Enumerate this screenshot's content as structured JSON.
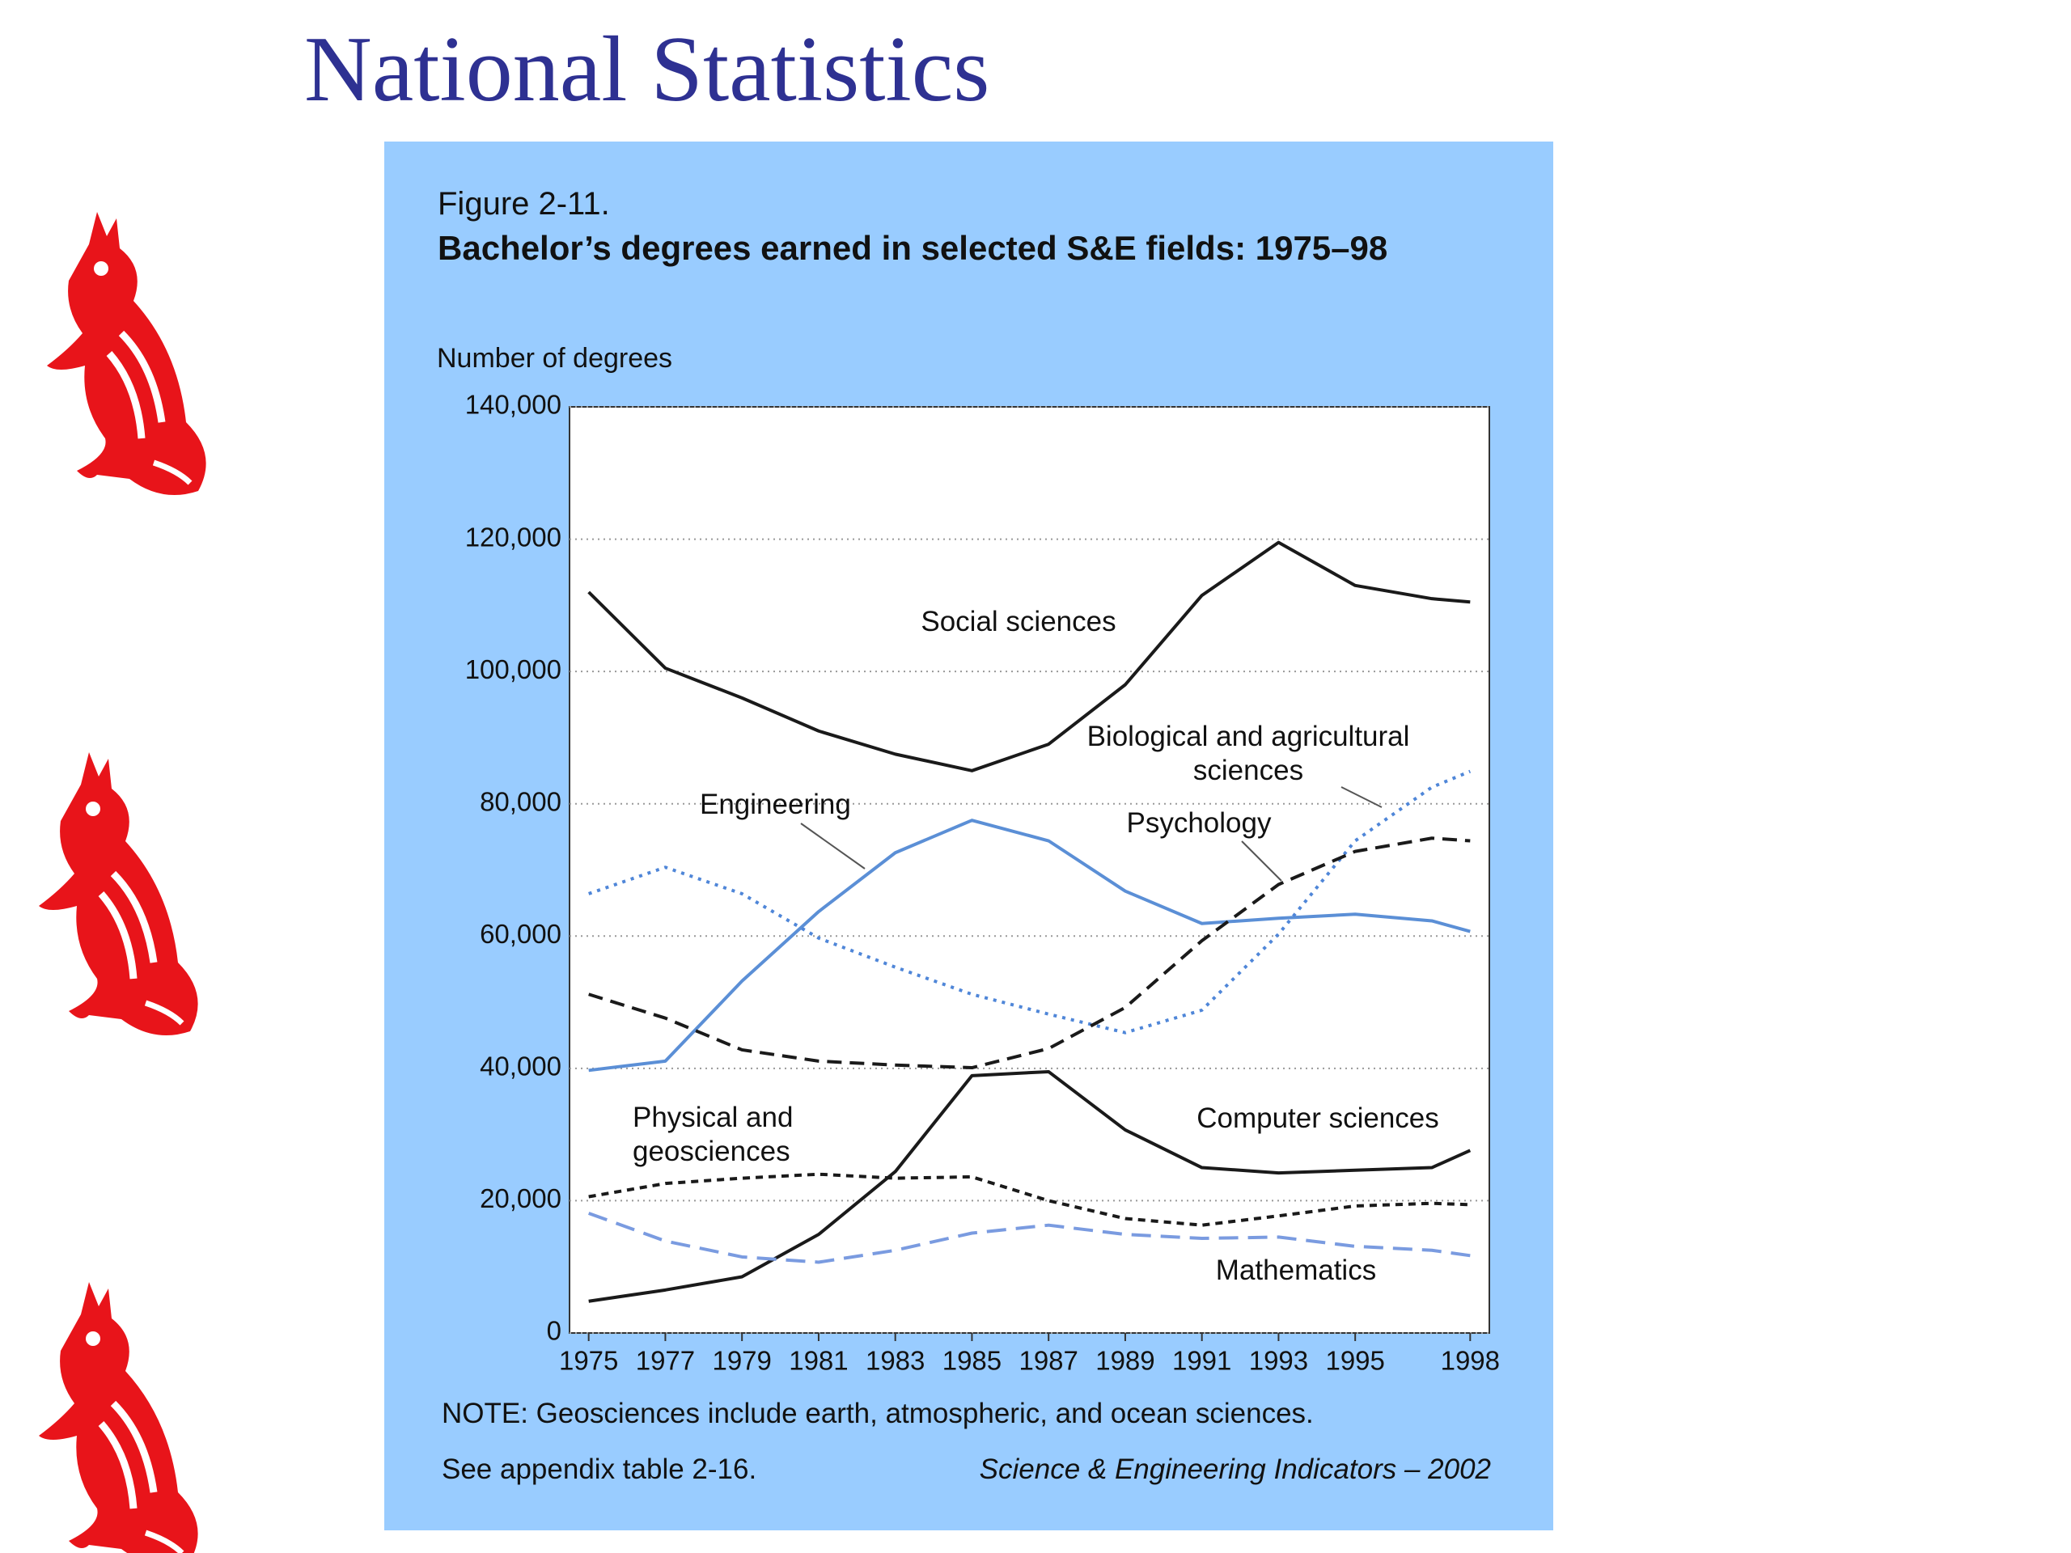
{
  "slide_title": "National Statistics",
  "chart_data": {
    "type": "line",
    "figure_label": "Figure 2-11.",
    "title": "Bachelor’s degrees earned in selected S&E fields: 1975–98",
    "y_label": "Number of degrees",
    "note": "NOTE: Geosciences include earth, atmospheric, and ocean sciences.",
    "source_left": "See appendix table 2-16.",
    "source_right": "Science & Engineering Indicators – 2002",
    "x": [
      1975,
      1977,
      1979,
      1981,
      1983,
      1985,
      1987,
      1989,
      1991,
      1993,
      1995,
      1997,
      1998
    ],
    "xlim": [
      1974.5,
      1998.5
    ],
    "xticks": [
      1975,
      1977,
      1979,
      1981,
      1983,
      1985,
      1987,
      1989,
      1991,
      1993,
      1995,
      1998
    ],
    "ylim": [
      0,
      140000
    ],
    "yticks": [
      0,
      {
        "value": 20000,
        "label": "20,000"
      },
      {
        "value": 40000,
        "label": "40,000"
      },
      {
        "value": 60000,
        "label": "60,000"
      },
      {
        "value": 80000,
        "label": "80,000"
      },
      {
        "value": 100000,
        "label": "100,000"
      },
      {
        "value": 120000,
        "label": "120,000"
      },
      {
        "value": 140000,
        "label": "140,000"
      }
    ],
    "grid": true,
    "series": [
      {
        "name": "Social sciences",
        "color": "#1a1a1a",
        "dash": "solid",
        "values": [
          112000,
          100500,
          96000,
          91000,
          87500,
          85000,
          89000,
          98000,
          111500,
          119500,
          113000,
          111000,
          110500
        ]
      },
      {
        "name": "Engineering",
        "color": "#5b8fd6",
        "dash": "solid",
        "values": [
          39700,
          41100,
          53200,
          63700,
          72600,
          77500,
          74400,
          66800,
          61900,
          62700,
          63300,
          62300,
          60700
        ]
      },
      {
        "name": "Biological and agricultural sciences",
        "color": "#4f86d8",
        "dash": "dotted",
        "values": [
          66400,
          70400,
          66400,
          59700,
          55300,
          51200,
          48200,
          45400,
          48800,
          60300,
          74400,
          82500,
          84900
        ]
      },
      {
        "name": "Psychology",
        "color": "#1a1a1a",
        "dash": "dashed",
        "values": [
          51200,
          47600,
          42800,
          41100,
          40500,
          40100,
          43000,
          49200,
          59300,
          67800,
          72800,
          74800,
          74400
        ]
      },
      {
        "name": "Computer sciences",
        "color": "#1a1a1a",
        "dash": "solid",
        "values": [
          4800,
          6500,
          8500,
          14900,
          24400,
          38900,
          39500,
          30700,
          25000,
          24200,
          24600,
          25000,
          27600
        ]
      },
      {
        "name": "Physical and geosciences",
        "color": "#1a1a1a",
        "dash": "short-dashed",
        "values": [
          20600,
          22600,
          23400,
          24000,
          23400,
          23600,
          20000,
          17300,
          16300,
          17700,
          19200,
          19600,
          19400
        ]
      },
      {
        "name": "Mathematics",
        "color": "#7a9be0",
        "dash": "long-dashed",
        "values": [
          18100,
          13900,
          11500,
          10700,
          12500,
          15100,
          16300,
          14900,
          14300,
          14500,
          13100,
          12500,
          11700
        ]
      }
    ]
  }
}
